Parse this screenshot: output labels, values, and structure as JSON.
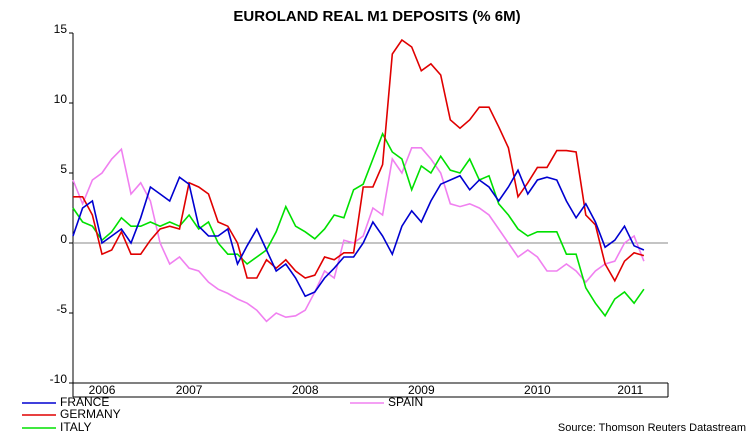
{
  "chart_data": {
    "type": "line",
    "title": "EUROLAND REAL M1 DEPOSITS (% 6M)",
    "source": "Source: Thomson Reuters Datastream",
    "x": [
      2006.5,
      2006.583,
      2006.667,
      2006.75,
      2006.833,
      2006.917,
      2007,
      2007.083,
      2007.167,
      2007.25,
      2007.333,
      2007.417,
      2007.5,
      2007.583,
      2007.667,
      2007.75,
      2007.833,
      2007.917,
      2008,
      2008.083,
      2008.167,
      2008.25,
      2008.333,
      2008.417,
      2008.5,
      2008.583,
      2008.667,
      2008.75,
      2008.833,
      2008.917,
      2009,
      2009.083,
      2009.167,
      2009.25,
      2009.333,
      2009.417,
      2009.5,
      2009.583,
      2009.667,
      2009.75,
      2009.833,
      2009.917,
      2010,
      2010.083,
      2010.167,
      2010.25,
      2010.333,
      2010.417,
      2010.5,
      2010.583,
      2010.667,
      2010.75,
      2010.833,
      2010.917,
      2011,
      2011.083,
      2011.167,
      2011.25,
      2011.333,
      2011.417
    ],
    "xlim": [
      2006.5,
      2011.625
    ],
    "xticks": [
      {
        "value": 2006.75,
        "label": "2006"
      },
      {
        "value": 2007.5,
        "label": "2007"
      },
      {
        "value": 2008.5,
        "label": "2008"
      },
      {
        "value": 2009.5,
        "label": "2009"
      },
      {
        "value": 2010.5,
        "label": "2010"
      },
      {
        "value": 2011.3,
        "label": "2011"
      }
    ],
    "ylim": [
      -10,
      15
    ],
    "yticks": [
      -10,
      -5,
      0,
      5,
      10,
      15
    ],
    "zero_line": true,
    "series": [
      {
        "name": "FRANCE",
        "color": "#0000d0",
        "values": [
          0.5,
          2.5,
          3.0,
          0.0,
          0.5,
          1.0,
          0.0,
          1.8,
          4.0,
          3.5,
          3.0,
          4.7,
          4.2,
          1.2,
          0.5,
          0.5,
          1.0,
          -1.5,
          -0.2,
          1.0,
          -0.5,
          -2.0,
          -1.5,
          -2.5,
          -3.8,
          -3.5,
          -2.5,
          -1.8,
          -1.0,
          -1.0,
          0.0,
          1.5,
          0.5,
          -0.8,
          1.2,
          2.3,
          1.5,
          3.0,
          4.2,
          4.5,
          4.8,
          3.8,
          4.5,
          4.0,
          3.0,
          4.0,
          5.2,
          3.5,
          4.5,
          4.7,
          4.5,
          3.0,
          1.8,
          2.8,
          1.5,
          -0.3,
          0.2,
          1.2,
          -0.2,
          -0.5
        ]
      },
      {
        "name": "GERMANY",
        "color": "#e00000",
        "values": [
          3.3,
          3.3,
          2.0,
          -0.8,
          -0.5,
          0.8,
          -0.8,
          -0.8,
          0.2,
          1.0,
          1.2,
          1.0,
          4.3,
          4.0,
          3.5,
          1.5,
          1.2,
          0.0,
          -2.5,
          -2.5,
          -1.2,
          -1.8,
          -1.2,
          -2.0,
          -2.5,
          -2.3,
          -1.0,
          -1.2,
          -0.7,
          -0.7,
          4.0,
          4.0,
          5.6,
          13.5,
          14.5,
          14.0,
          12.3,
          12.8,
          12.0,
          8.8,
          8.2,
          8.8,
          9.7,
          9.7,
          8.3,
          6.8,
          3.3,
          4.3,
          5.4,
          5.4,
          6.6,
          6.6,
          6.5,
          2.0,
          1.3,
          -1.5,
          -2.7,
          -1.3,
          -0.7,
          -0.9
        ]
      },
      {
        "name": "ITALY",
        "color": "#00e000",
        "values": [
          2.5,
          1.5,
          1.2,
          0.2,
          0.8,
          1.8,
          1.2,
          1.2,
          1.5,
          1.2,
          1.5,
          1.2,
          2.0,
          1.0,
          1.5,
          0.0,
          -0.8,
          -0.8,
          -1.5,
          -1.0,
          -0.5,
          0.8,
          2.6,
          1.2,
          0.8,
          0.3,
          1.0,
          2.0,
          1.8,
          3.8,
          4.2,
          6.0,
          7.8,
          6.5,
          6.0,
          3.8,
          5.5,
          5.0,
          6.2,
          5.2,
          5.0,
          6.0,
          4.5,
          4.8,
          2.8,
          2.0,
          1.0,
          0.5,
          0.8,
          0.8,
          0.8,
          -0.8,
          -0.8,
          -3.2,
          -4.3,
          -5.2,
          -4.0,
          -3.5,
          -4.3,
          -3.3
        ]
      },
      {
        "name": "SPAIN",
        "color": "#f080f0",
        "values": [
          4.5,
          2.8,
          4.5,
          5.0,
          6.0,
          6.7,
          3.5,
          4.3,
          3.0,
          0.0,
          -1.5,
          -1.0,
          -1.8,
          -2.0,
          -2.8,
          -3.3,
          -3.6,
          -4.0,
          -4.3,
          -4.8,
          -5.6,
          -5.0,
          -5.3,
          -5.2,
          -4.8,
          -3.5,
          -2.0,
          -2.5,
          0.2,
          0.0,
          0.5,
          2.5,
          2.0,
          6.0,
          5.0,
          6.8,
          6.8,
          6.0,
          5.0,
          2.8,
          2.6,
          2.8,
          2.5,
          2.0,
          1.0,
          0.0,
          -1.0,
          -0.5,
          -1.0,
          -2.0,
          -2.0,
          -1.5,
          -2.0,
          -2.8,
          -2.0,
          -1.5,
          -1.3,
          0.0,
          0.5,
          -1.3
        ]
      }
    ]
  }
}
